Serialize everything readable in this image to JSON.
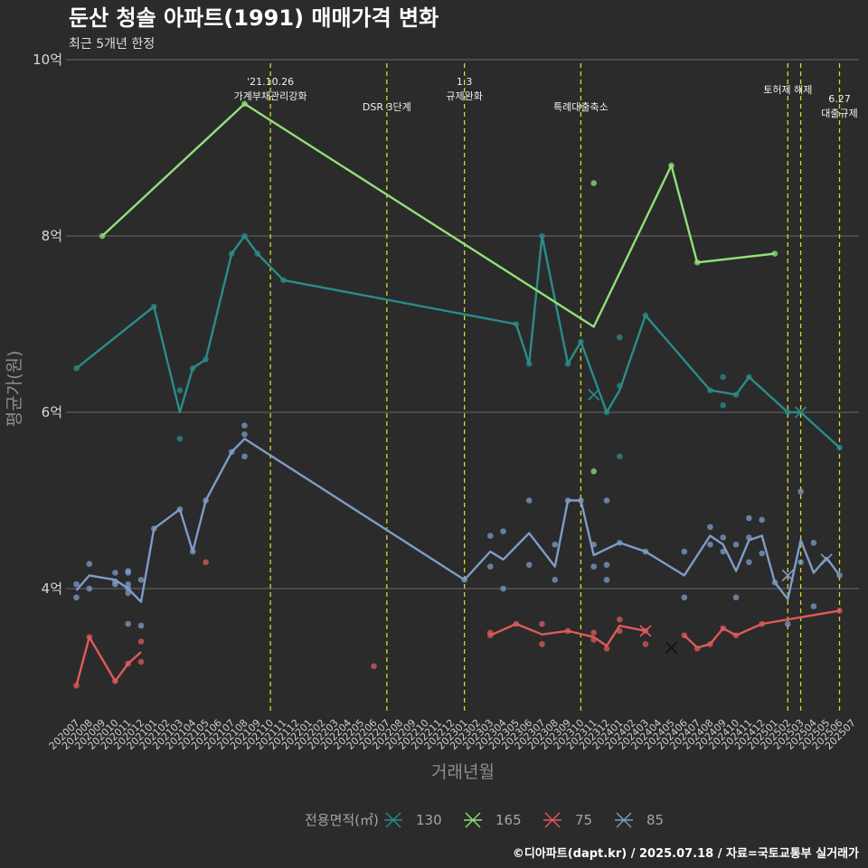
{
  "chart_data": {
    "type": "line",
    "title": "둔산 청솔 아파트(1991) 매매가격 변화",
    "subtitle": "최근 5개년 한정",
    "xlabel": "거래년월",
    "ylabel": "평균가(원)",
    "caption": "©디아파트(dapt.kr) / 2025.07.18 / 자료=국토교통부 실거래가",
    "legend_title": "전용면적(㎡)",
    "ylim": [
      2.65,
      10.0
    ],
    "y_ticks": [
      {
        "value": 4,
        "label": "4억"
      },
      {
        "value": 6,
        "label": "6억"
      },
      {
        "value": 8,
        "label": "8억"
      },
      {
        "value": 10,
        "label": "10억"
      }
    ],
    "months": [
      "202007",
      "202008",
      "202009",
      "202010",
      "202011",
      "202012",
      "202101",
      "202102",
      "202103",
      "202104",
      "202105",
      "202106",
      "202107",
      "202108",
      "202109",
      "202110",
      "202111",
      "202112",
      "202201",
      "202202",
      "202203",
      "202204",
      "202205",
      "202206",
      "202207",
      "202208",
      "202209",
      "202210",
      "202211",
      "202212",
      "202301",
      "202302",
      "202303",
      "202304",
      "202305",
      "202306",
      "202307",
      "202308",
      "202309",
      "202310",
      "202311",
      "202312",
      "202401",
      "202402",
      "202403",
      "202404",
      "202405",
      "202406",
      "202407",
      "202408",
      "202409",
      "202410",
      "202411",
      "202412",
      "202501",
      "202502",
      "202503",
      "202504",
      "202505",
      "202506",
      "202507"
    ],
    "events": [
      {
        "month": "202110",
        "label": "'21.10.26\n가계부채관리강화"
      },
      {
        "month": "202207",
        "label": "DSR 3단계"
      },
      {
        "month": "202301",
        "label": "1.3\n규제완화"
      },
      {
        "month": "202310",
        "label": "특례대출축소"
      },
      {
        "month": "202502",
        "label": "토허제 해제"
      },
      {
        "month": "202503",
        "label": ""
      },
      {
        "month": "202506",
        "label": "6.27\n대출규제"
      }
    ],
    "series": [
      {
        "name": "130",
        "color": "#2a8c8a",
        "line": [
          [
            "202007",
            6.5
          ],
          [
            "202101",
            7.2
          ],
          [
            "202103",
            6.0
          ],
          [
            "202104",
            6.5
          ],
          [
            "202105",
            6.6
          ],
          [
            "202107",
            7.8
          ],
          [
            "202108",
            8.0
          ],
          [
            "202109",
            7.8
          ],
          [
            "202111",
            7.5
          ],
          [
            "202305",
            7.0
          ],
          [
            "202306",
            6.55
          ],
          [
            "202307",
            8.0
          ],
          [
            "202309",
            6.55
          ],
          [
            "202310",
            6.8
          ],
          [
            "202312",
            6.0
          ],
          [
            "202401",
            6.25
          ],
          [
            "202403",
            7.1
          ],
          [
            "202408",
            6.25
          ],
          [
            "202410",
            6.2
          ],
          [
            "202411",
            6.4
          ],
          [
            "202502",
            6.0
          ],
          [
            "202503",
            6.0
          ],
          [
            "202506",
            5.6
          ]
        ],
        "points": [
          [
            "202007",
            6.5
          ],
          [
            "202101",
            7.2
          ],
          [
            "202103",
            6.25
          ],
          [
            "202103",
            5.7
          ],
          [
            "202104",
            6.5
          ],
          [
            "202105",
            6.6
          ],
          [
            "202107",
            7.8
          ],
          [
            "202108",
            8.0
          ],
          [
            "202109",
            7.8
          ],
          [
            "202111",
            7.5
          ],
          [
            "202305",
            7.0
          ],
          [
            "202306",
            6.55
          ],
          [
            "202307",
            8.0
          ],
          [
            "202309",
            6.55
          ],
          [
            "202310",
            6.8
          ],
          [
            "202312",
            6.0
          ],
          [
            "202401",
            6.85
          ],
          [
            "202401",
            6.3
          ],
          [
            "202401",
            5.5
          ],
          [
            "202403",
            7.1
          ],
          [
            "202408",
            6.25
          ],
          [
            "202409",
            6.4
          ],
          [
            "202409",
            6.08
          ],
          [
            "202410",
            6.2
          ],
          [
            "202411",
            6.4
          ],
          [
            "202502",
            6.0
          ],
          [
            "202506",
            5.6
          ]
        ],
        "cross": [
          [
            "202311",
            6.2
          ],
          [
            "202503",
            6.0
          ]
        ]
      },
      {
        "name": "165",
        "color": "#90e07a",
        "line": [
          [
            "202009",
            8.0
          ],
          [
            "202108",
            9.5
          ],
          [
            "202311",
            6.97
          ],
          [
            "202405",
            8.8
          ],
          [
            "202407",
            7.7
          ],
          [
            "202501",
            7.8
          ]
        ],
        "points": [
          [
            "202009",
            8.0
          ],
          [
            "202108",
            9.5
          ],
          [
            "202311",
            8.6
          ],
          [
            "202311",
            5.33
          ],
          [
            "202405",
            8.8
          ],
          [
            "202407",
            7.7
          ],
          [
            "202501",
            7.8
          ]
        ],
        "cross": []
      },
      {
        "name": "75",
        "color": "#e05a5a",
        "line": [
          [
            "202007",
            2.9
          ],
          [
            "202008",
            3.45
          ],
          [
            "202010",
            2.95
          ],
          [
            "202011",
            3.15
          ],
          [
            "202012",
            3.28
          ]
        ],
        "points": [
          [
            "202007",
            2.9
          ],
          [
            "202008",
            3.45
          ],
          [
            "202010",
            2.95
          ],
          [
            "202011",
            3.15
          ],
          [
            "202012",
            3.4
          ],
          [
            "202012",
            3.17
          ],
          [
            "202105",
            4.3
          ],
          [
            "202206",
            3.12
          ],
          [
            "202303",
            3.5
          ],
          [
            "202303",
            3.47
          ],
          [
            "202305",
            3.6
          ],
          [
            "202307",
            3.6
          ],
          [
            "202307",
            3.37
          ],
          [
            "202309",
            3.52
          ],
          [
            "202311",
            3.5
          ],
          [
            "202311",
            3.42
          ],
          [
            "202312",
            3.32
          ],
          [
            "202401",
            3.65
          ],
          [
            "202401",
            3.52
          ],
          [
            "202403",
            3.52
          ],
          [
            "202403",
            3.37
          ],
          [
            "202406",
            3.47
          ],
          [
            "202407",
            3.32
          ],
          [
            "202408",
            3.37
          ],
          [
            "202409",
            3.55
          ],
          [
            "202410",
            3.47
          ],
          [
            "202412",
            3.6
          ],
          [
            "202506",
            3.75
          ]
        ],
        "line2": [
          [
            "202303",
            3.47
          ],
          [
            "202305",
            3.6
          ],
          [
            "202307",
            3.48
          ],
          [
            "202309",
            3.52
          ],
          [
            "202311",
            3.45
          ],
          [
            "202312",
            3.35
          ],
          [
            "202401",
            3.58
          ],
          [
            "202403",
            3.52
          ]
        ],
        "line3": [
          [
            "202406",
            3.47
          ],
          [
            "202407",
            3.33
          ],
          [
            "202408",
            3.37
          ],
          [
            "202409",
            3.55
          ],
          [
            "202410",
            3.47
          ],
          [
            "202412",
            3.6
          ],
          [
            "202506",
            3.75
          ]
        ],
        "cross": [
          [
            "202403",
            3.52
          ],
          [
            "202405",
            3.33
          ]
        ]
      },
      {
        "name": "85",
        "color": "#7e9cc8",
        "line": [
          [
            "202007",
            3.98
          ],
          [
            "202008",
            4.15
          ],
          [
            "202010",
            4.1
          ],
          [
            "202011",
            4.0
          ],
          [
            "202012",
            3.85
          ],
          [
            "202101",
            4.68
          ],
          [
            "202103",
            4.9
          ],
          [
            "202104",
            4.42
          ],
          [
            "202105",
            5.0
          ],
          [
            "202107",
            5.55
          ],
          [
            "202108",
            5.7
          ],
          [
            "202301",
            4.1
          ],
          [
            "202303",
            4.42
          ],
          [
            "202304",
            4.33
          ],
          [
            "202306",
            4.63
          ],
          [
            "202308",
            4.25
          ],
          [
            "202309",
            5.0
          ],
          [
            "202310",
            5.0
          ],
          [
            "202311",
            4.38
          ],
          [
            "202312",
            4.45
          ],
          [
            "202401",
            4.52
          ],
          [
            "202403",
            4.42
          ],
          [
            "202406",
            4.15
          ],
          [
            "202408",
            4.6
          ],
          [
            "202409",
            4.5
          ],
          [
            "202410",
            4.2
          ],
          [
            "202411",
            4.55
          ],
          [
            "202412",
            4.6
          ],
          [
            "202501",
            4.07
          ],
          [
            "202502",
            3.88
          ],
          [
            "202503",
            4.55
          ],
          [
            "202504",
            4.18
          ],
          [
            "202505",
            4.35
          ],
          [
            "202506",
            4.15
          ]
        ],
        "points": [
          [
            "202007",
            4.05
          ],
          [
            "202007",
            3.9
          ],
          [
            "202008",
            4.28
          ],
          [
            "202008",
            4.0
          ],
          [
            "202010",
            4.18
          ],
          [
            "202010",
            4.08
          ],
          [
            "202010",
            4.05
          ],
          [
            "202011",
            4.2
          ],
          [
            "202011",
            4.18
          ],
          [
            "202011",
            4.05
          ],
          [
            "202011",
            4.0
          ],
          [
            "202011",
            3.95
          ],
          [
            "202011",
            3.6
          ],
          [
            "202012",
            4.1
          ],
          [
            "202012",
            3.58
          ],
          [
            "202101",
            4.68
          ],
          [
            "202103",
            4.9
          ],
          [
            "202104",
            4.42
          ],
          [
            "202105",
            5.0
          ],
          [
            "202107",
            5.55
          ],
          [
            "202108",
            5.85
          ],
          [
            "202108",
            5.75
          ],
          [
            "202108",
            5.5
          ],
          [
            "202301",
            4.1
          ],
          [
            "202303",
            4.6
          ],
          [
            "202303",
            4.25
          ],
          [
            "202304",
            4.65
          ],
          [
            "202304",
            4.0
          ],
          [
            "202306",
            5.0
          ],
          [
            "202306",
            4.27
          ],
          [
            "202308",
            4.5
          ],
          [
            "202308",
            4.1
          ],
          [
            "202309",
            5.0
          ],
          [
            "202310",
            5.0
          ],
          [
            "202311",
            4.5
          ],
          [
            "202311",
            4.25
          ],
          [
            "202312",
            5.0
          ],
          [
            "202312",
            4.27
          ],
          [
            "202312",
            4.1
          ],
          [
            "202401",
            4.52
          ],
          [
            "202403",
            4.42
          ],
          [
            "202406",
            4.42
          ],
          [
            "202406",
            3.9
          ],
          [
            "202408",
            4.7
          ],
          [
            "202408",
            4.5
          ],
          [
            "202409",
            4.58
          ],
          [
            "202409",
            4.42
          ],
          [
            "202410",
            4.5
          ],
          [
            "202410",
            3.9
          ],
          [
            "202411",
            4.8
          ],
          [
            "202411",
            4.58
          ],
          [
            "202411",
            4.3
          ],
          [
            "202412",
            4.78
          ],
          [
            "202412",
            4.4
          ],
          [
            "202501",
            4.07
          ],
          [
            "202502",
            3.6
          ],
          [
            "202503",
            5.1
          ],
          [
            "202503",
            4.3
          ],
          [
            "202504",
            4.52
          ],
          [
            "202504",
            3.8
          ],
          [
            "202506",
            4.15
          ]
        ],
        "cross": [
          [
            "202502",
            4.15
          ],
          [
            "202505",
            4.33
          ]
        ]
      }
    ],
    "legend": [
      {
        "name": "130",
        "color": "#2a8c8a"
      },
      {
        "name": "165",
        "color": "#90e07a"
      },
      {
        "name": "75",
        "color": "#e05a5a"
      },
      {
        "name": "85",
        "color": "#7e9cc8"
      }
    ]
  }
}
